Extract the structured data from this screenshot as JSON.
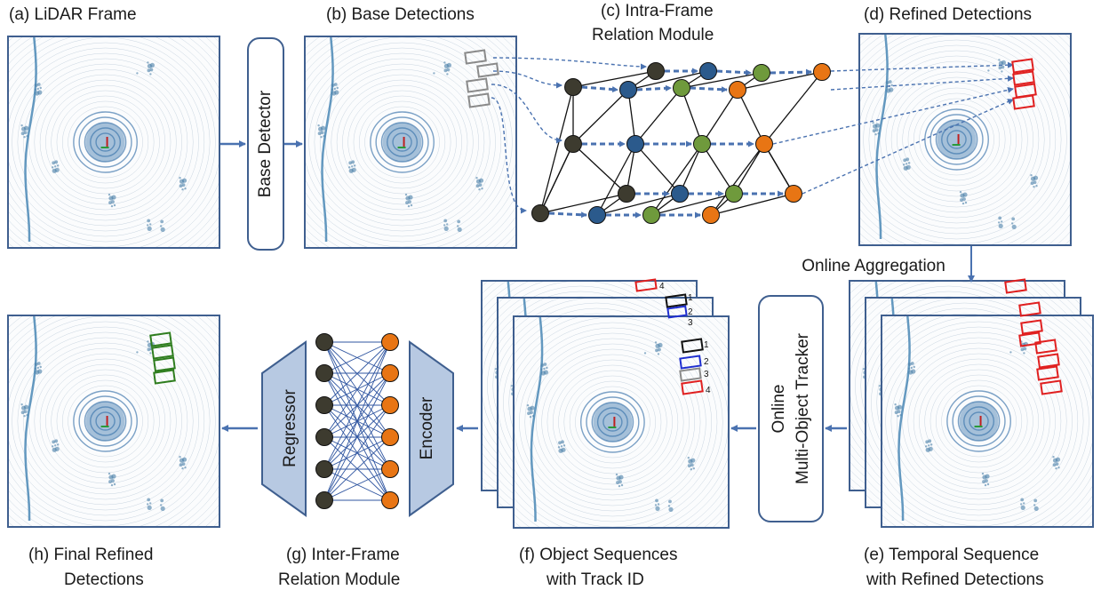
{
  "captions": {
    "a": "(a) LiDAR Frame",
    "b": "(b) Base Detections",
    "c1": "(c) Intra-Frame",
    "c2": "Relation Module",
    "d": "(d) Refined Detections",
    "e1": "(e) Temporal Sequence",
    "e2": "with Refined Detections",
    "f1": "(f)  Object Sequences",
    "f2": "with Track ID",
    "g1": "(g) Inter-Frame",
    "g2": "Relation Module",
    "h1": "(h) Final Refined",
    "h2": "Detections"
  },
  "blocks": {
    "base_detector": "Base Detector",
    "tracker_line1": "Online",
    "tracker_line2": "Multi-Object Tracker",
    "regressor": "Regressor",
    "encoder": "Encoder"
  },
  "labels": {
    "online_aggregation": "Online Aggregation"
  },
  "track_ids": [
    "1",
    "2",
    "3",
    "4"
  ],
  "colors": {
    "frame_border": "#3f5f8f",
    "arrow": "#4a72b0",
    "node_dark": "#3d3b2f",
    "node_blue": "#2b5a8c",
    "node_green": "#6f9a3c",
    "node_orange": "#e87514",
    "box_red": "#e02020",
    "box_green": "#2e7d1e",
    "box_black": "#111111",
    "box_blue": "#1f2fd0",
    "box_gray": "#8a8a8a",
    "trapezoid_fill": "#b7c9e2"
  }
}
